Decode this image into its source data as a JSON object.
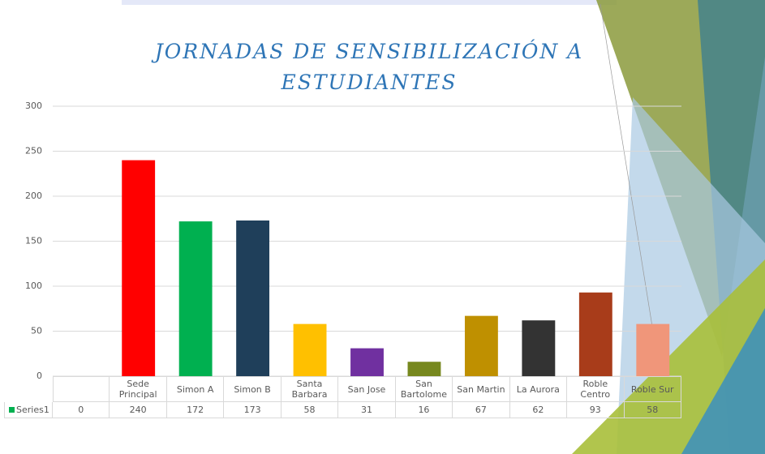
{
  "chart_data": {
    "type": "bar",
    "title": "JORNADAS DE SENSIBILIZACIÓN A ESTUDIANTES",
    "categories": [
      null,
      "Sede Principal",
      "Simon A",
      "Simon B",
      "Santa Barbara",
      "San Jose",
      "San Bartolome",
      "San Martin",
      "La Aurora",
      "Roble Centro",
      "Roble Sur"
    ],
    "series": [
      {
        "name": "Series1",
        "color": "#00b050",
        "values": [
          0,
          240,
          172,
          173,
          58,
          31,
          16,
          67,
          62,
          93,
          58
        ],
        "colors": [
          "#4472c4",
          "#ff0000",
          "#00b050",
          "#1f3f5a",
          "#ffc000",
          "#7030a0",
          "#77881e",
          "#bf9000",
          "#333333",
          "#a83c1a",
          "#f0967a"
        ]
      }
    ],
    "ylim": [
      0,
      300
    ],
    "yticks": [
      0,
      50,
      100,
      150,
      200,
      250,
      300
    ],
    "grid": true,
    "data_table": true
  }
}
